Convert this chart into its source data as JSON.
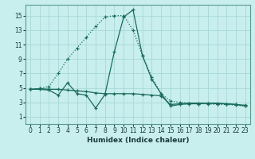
{
  "xlabel": "Humidex (Indice chaleur)",
  "bg_color": "#c8eeee",
  "grid_color": "#a8d8d8",
  "line_color": "#1a6b5a",
  "xlim": [
    -0.5,
    23.5
  ],
  "ylim": [
    0,
    16.5
  ],
  "xticks": [
    0,
    1,
    2,
    3,
    4,
    5,
    6,
    7,
    8,
    9,
    10,
    11,
    12,
    13,
    14,
    15,
    16,
    17,
    18,
    19,
    20,
    21,
    22,
    23
  ],
  "yticks": [
    1,
    3,
    5,
    7,
    9,
    11,
    13,
    15
  ],
  "series": [
    {
      "x": [
        0,
        1,
        2,
        3,
        4,
        5,
        6,
        7,
        8,
        9,
        10,
        11,
        12,
        13,
        14,
        15,
        16,
        17,
        18,
        19,
        20,
        21,
        22,
        23
      ],
      "y": [
        4.8,
        4.9,
        5.2,
        7.0,
        9.0,
        10.5,
        12.0,
        13.5,
        14.8,
        15.0,
        15.0,
        13.0,
        9.5,
        6.5,
        4.2,
        3.2,
        3.0,
        2.9,
        2.8,
        2.8,
        2.7,
        2.7,
        2.6,
        2.5
      ],
      "linestyle": ":"
    },
    {
      "x": [
        0,
        1,
        2,
        3,
        4,
        5,
        6,
        7,
        8,
        9,
        10,
        11,
        12,
        13,
        14,
        15,
        16,
        17,
        18,
        19,
        20,
        21,
        22,
        23
      ],
      "y": [
        4.8,
        4.9,
        4.8,
        4.8,
        4.7,
        4.6,
        4.5,
        4.3,
        4.2,
        4.2,
        4.2,
        4.2,
        4.1,
        4.0,
        3.9,
        2.7,
        2.8,
        2.9,
        2.9,
        2.9,
        2.8,
        2.8,
        2.7,
        2.6
      ],
      "linestyle": "-"
    },
    {
      "x": [
        0,
        1,
        2,
        3,
        4,
        5,
        6,
        7,
        8,
        9,
        10,
        11,
        12,
        13,
        14,
        15,
        16,
        17,
        18,
        19,
        20,
        21,
        22,
        23
      ],
      "y": [
        4.8,
        4.8,
        4.7,
        4.0,
        5.7,
        4.2,
        4.0,
        2.2,
        4.1,
        10.0,
        14.8,
        15.8,
        9.5,
        6.2,
        4.2,
        2.5,
        2.7,
        2.8,
        2.8,
        2.9,
        2.9,
        2.8,
        2.7,
        2.5
      ],
      "linestyle": "-"
    }
  ]
}
